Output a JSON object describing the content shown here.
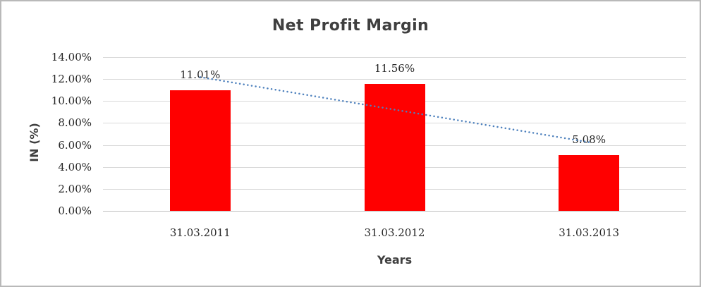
{
  "window": {
    "background": "#FFFFFF",
    "frame_border_color": "#B9B9B9"
  },
  "chart_data": {
    "type": "bar",
    "title": "Net Profit Margin",
    "xlabel": "Years",
    "ylabel": "IN (%)",
    "categories": [
      "31.03.2011",
      "31.03.2012",
      "31.03.2013"
    ],
    "series": [
      {
        "name": "Net Profit Margin",
        "values": [
          11.01,
          11.56,
          5.08
        ]
      }
    ],
    "data_labels": [
      "11.01%",
      "11.56%",
      "5.08%"
    ],
    "y_ticks": [
      "14.00%",
      "12.00%",
      "10.00%",
      "8.00%",
      "6.00%",
      "4.00%",
      "2.00%",
      "0.00%"
    ],
    "ylim": [
      0,
      14
    ],
    "y_step": 2,
    "grid": true,
    "legend_position": "none",
    "bar_color": "#FF0000",
    "gridline_color": "#D9D9D9",
    "trendline": {
      "type": "linear",
      "style": "dotted",
      "color": "#4E81BD",
      "start_value": 12.18,
      "end_value": 6.25
    }
  }
}
